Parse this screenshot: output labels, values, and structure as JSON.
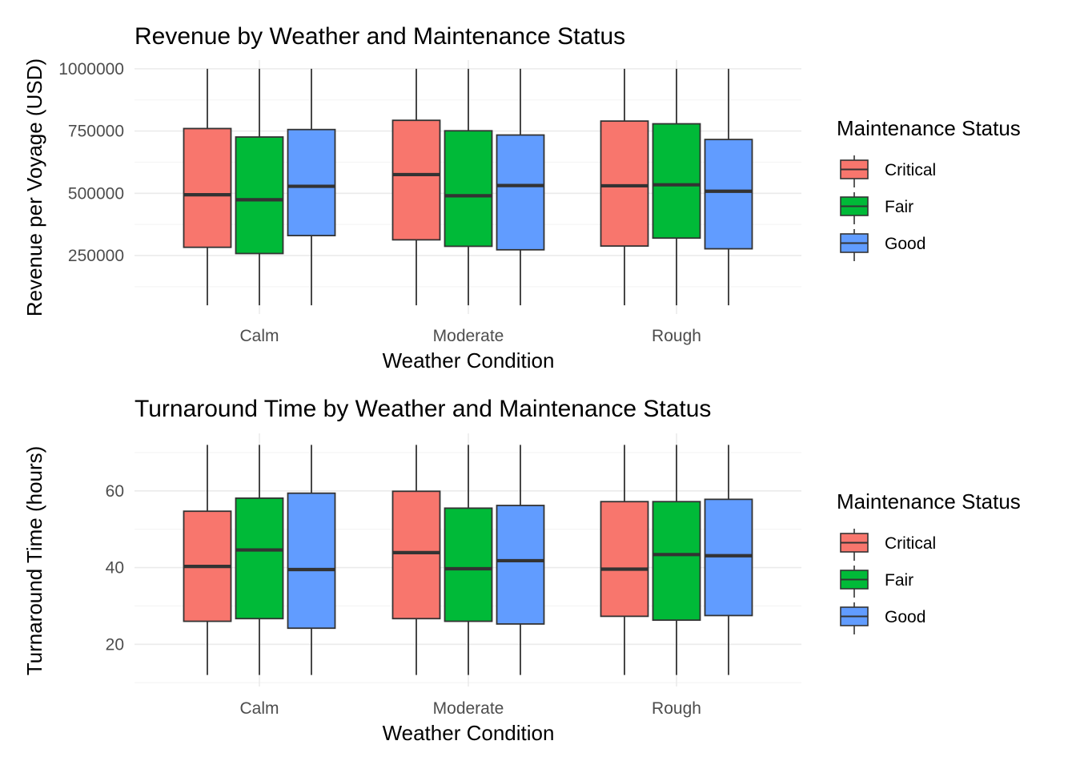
{
  "chart_data": [
    {
      "type": "boxplot",
      "title": "Revenue by Weather and Maintenance Status",
      "xlabel": "Weather Condition",
      "ylabel": "Revenue per Voyage (USD)",
      "categories": [
        "Calm",
        "Moderate",
        "Rough"
      ],
      "ylim": [
        15000,
        1035000
      ],
      "yticks": [
        250000,
        500000,
        750000,
        1000000
      ],
      "ytick_labels": [
        "250000",
        "500000",
        "750000",
        "1000000"
      ],
      "grid": true,
      "legend": {
        "title": "Maintenance Status",
        "position": "right"
      },
      "series": [
        {
          "name": "Critical",
          "color": "#F8766D",
          "boxes": [
            {
              "min": 50000,
              "q1": 283000,
              "median": 494000,
              "q3": 760000,
              "max": 1000000
            },
            {
              "min": 50000,
              "q1": 313000,
              "median": 575000,
              "q3": 793000,
              "max": 1000000
            },
            {
              "min": 50000,
              "q1": 288000,
              "median": 530000,
              "q3": 790000,
              "max": 1000000
            }
          ]
        },
        {
          "name": "Fair",
          "color": "#00BA38",
          "boxes": [
            {
              "min": 50000,
              "q1": 258000,
              "median": 474000,
              "q3": 726000,
              "max": 1000000
            },
            {
              "min": 50000,
              "q1": 287000,
              "median": 490000,
              "q3": 751000,
              "max": 1000000
            },
            {
              "min": 50000,
              "q1": 320000,
              "median": 534000,
              "q3": 779000,
              "max": 1000000
            }
          ]
        },
        {
          "name": "Good",
          "color": "#619CFF",
          "boxes": [
            {
              "min": 50000,
              "q1": 330000,
              "median": 528000,
              "q3": 756000,
              "max": 1000000
            },
            {
              "min": 50000,
              "q1": 273000,
              "median": 531000,
              "q3": 734000,
              "max": 1000000
            },
            {
              "min": 50000,
              "q1": 277000,
              "median": 508000,
              "q3": 716000,
              "max": 1000000
            }
          ]
        }
      ]
    },
    {
      "type": "boxplot",
      "title": "Turnaround Time by Weather and Maintenance Status",
      "xlabel": "Weather Condition",
      "ylabel": "Turnaround Time (hours)",
      "categories": [
        "Calm",
        "Moderate",
        "Rough"
      ],
      "ylim": [
        9,
        75
      ],
      "yticks": [
        20,
        40,
        60
      ],
      "ytick_labels": [
        "20",
        "40",
        "60"
      ],
      "grid": true,
      "legend": {
        "title": "Maintenance Status",
        "position": "right"
      },
      "series": [
        {
          "name": "Critical",
          "color": "#F8766D",
          "boxes": [
            {
              "min": 12,
              "q1": 26.0,
              "median": 40.3,
              "q3": 54.7,
              "max": 72
            },
            {
              "min": 12,
              "q1": 26.7,
              "median": 43.9,
              "q3": 59.9,
              "max": 72
            },
            {
              "min": 12,
              "q1": 27.3,
              "median": 39.6,
              "q3": 57.2,
              "max": 72
            }
          ]
        },
        {
          "name": "Fair",
          "color": "#00BA38",
          "boxes": [
            {
              "min": 12,
              "q1": 26.7,
              "median": 44.6,
              "q3": 58.1,
              "max": 72
            },
            {
              "min": 12,
              "q1": 26.0,
              "median": 39.7,
              "q3": 55.5,
              "max": 72
            },
            {
              "min": 12,
              "q1": 26.3,
              "median": 43.4,
              "q3": 57.2,
              "max": 72
            }
          ]
        },
        {
          "name": "Good",
          "color": "#619CFF",
          "boxes": [
            {
              "min": 12,
              "q1": 24.2,
              "median": 39.5,
              "q3": 59.4,
              "max": 72
            },
            {
              "min": 12,
              "q1": 25.3,
              "median": 41.8,
              "q3": 56.2,
              "max": 72
            },
            {
              "min": 12,
              "q1": 27.5,
              "median": 43.1,
              "q3": 57.8,
              "max": 72
            }
          ]
        }
      ]
    }
  ]
}
